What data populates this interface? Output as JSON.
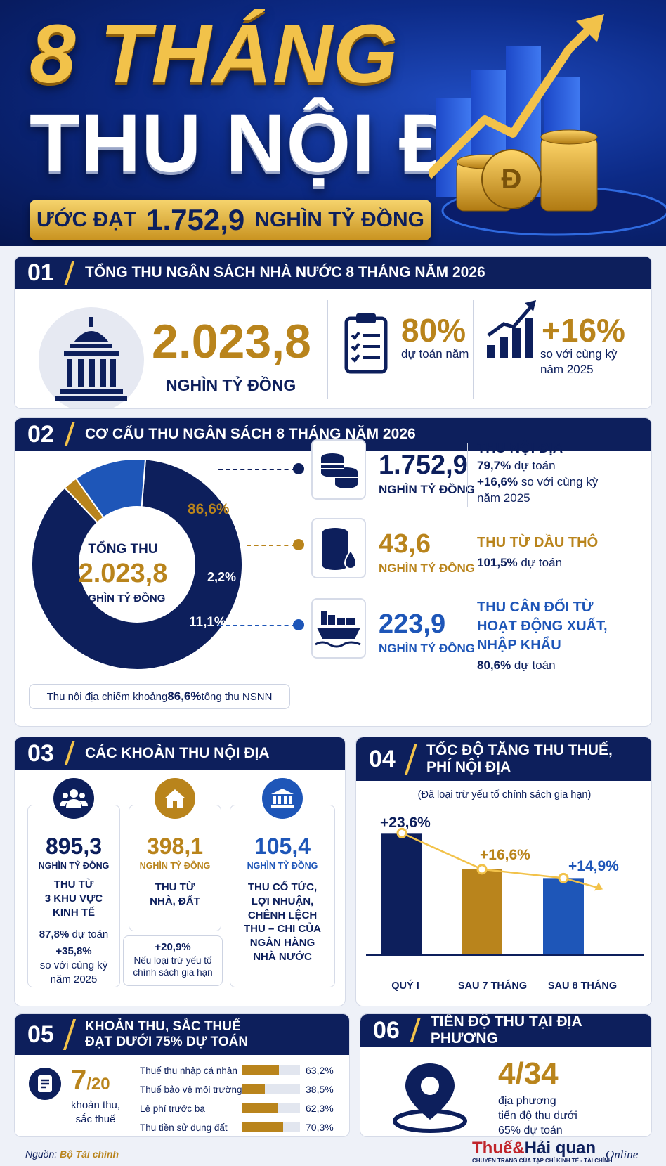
{
  "hero": {
    "title_line1": "8 THÁNG",
    "title_line2": "THU NỘI ĐỊA",
    "banner_prefix": "ƯỚC ĐẠT",
    "banner_value": "1.752,9",
    "banner_suffix": "NGHÌN TỶ ĐỒNG"
  },
  "section1": {
    "number": "01",
    "title": "TỔNG THU NGÂN SÁCH NHÀ NƯỚC 8 THÁNG NĂM 2026",
    "total_value": "2.023,8",
    "total_unit": "NGHÌN TỶ ĐỒNG",
    "estimate_pct": "80%",
    "estimate_label": "dự toán năm",
    "growth_pct": "+16%",
    "growth_label_1": "so với cùng kỳ",
    "growth_label_2": "năm 2025"
  },
  "section2": {
    "number": "02",
    "title": "CƠ CẤU THU NGÂN SÁCH 8 THÁNG NĂM 2026",
    "center_title": "TỔNG THU",
    "center_value": "2.023,8",
    "center_unit": "NGHÌN TỶ ĐỒNG",
    "items": [
      {
        "value": "1.752,9",
        "unit": "NGHÌN TỶ ĐỒNG",
        "title": "THU NỘI ĐỊA",
        "pct_strong": "79,7%",
        "pct_rest": " dự toán",
        "line3_strong": "+16,6%",
        "line3_rest": " so với cùng kỳ",
        "line4": "năm 2025"
      },
      {
        "value": "43,6",
        "unit": "NGHÌN TỶ ĐỒNG",
        "title": "THU TỪ DẦU THÔ",
        "pct_strong": "101,5%",
        "pct_rest": " dự toán"
      },
      {
        "value": "223,9",
        "unit": "NGHÌN TỶ ĐỒNG",
        "title_1": "THU CÂN ĐỐI TỪ",
        "title_2": "HOẠT ĐỘNG XUẤT,",
        "title_3": "NHẬP KHẨU",
        "pct_strong": "80,6%",
        "pct_rest": " dự toán"
      }
    ],
    "note_pre": "Thu nội địa chiếm khoảng ",
    "note_strong": "86,6%",
    "note_post": " tổng thu NSNN"
  },
  "chart_data": [
    {
      "type": "pie",
      "title": "CƠ CẤU THU NGÂN SÁCH 8 THÁNG NĂM 2026",
      "categories": [
        "THU NỘI ĐỊA",
        "THU TỪ DẦU THÔ",
        "THU CÂN ĐỐI TỪ HOẠT ĐỘNG XUẤT, NHẬP KHẨU"
      ],
      "values": [
        86.6,
        2.2,
        11.1
      ],
      "labels": [
        "86,6%",
        "2,2%",
        "11,1%"
      ],
      "colors": [
        "#0d1f5c",
        "#b9841c",
        "#1e56b8"
      ]
    },
    {
      "type": "bar",
      "title": "TỐC ĐỘ TĂNG THU THUẾ, PHÍ NỘI ĐỊA",
      "categories": [
        "QUÝ I",
        "SAU 7 THÁNG",
        "SAU 8 THÁNG"
      ],
      "values": [
        23.6,
        16.6,
        14.9
      ],
      "labels": [
        "+23,6%",
        "+16,6%",
        "+14,9%"
      ],
      "colors": [
        "#0d1f5c",
        "#b9841c",
        "#1e56b8"
      ],
      "ylim": [
        0,
        25
      ]
    },
    {
      "type": "bar",
      "title": "KHOẢN THU, SẮC THUẾ ĐẠT DƯỚI 75% DỰ TOÁN",
      "categories": [
        "Thuế thu nhập cá nhân",
        "Thuế bảo vệ môi trường",
        "Lệ phí trước bạ",
        "Thu tiền sử dụng đất"
      ],
      "values": [
        63.2,
        38.5,
        62.3,
        70.3
      ],
      "labels": [
        "63,2%",
        "38,5%",
        "62,3%",
        "70,3%"
      ],
      "ylim": [
        0,
        100
      ]
    }
  ],
  "section3": {
    "number": "03",
    "title": "CÁC KHOẢN THU NỘI ĐỊA",
    "cols": [
      {
        "value": "895,3",
        "unit": "NGHÌN TỶ ĐỒNG",
        "label_1": "THU TỪ",
        "label_2": "3 KHU VỰC",
        "label_3": "KINH TẾ",
        "stat_1_strong": "87,8%",
        "stat_1_rest": " dự toán",
        "stat_2_strong": "+35,8%",
        "stat_3": "so với cùng kỳ",
        "stat_4": "năm 2025"
      },
      {
        "value": "398,1",
        "unit": "NGHÌN TỶ ĐỒNG",
        "label_1": "THU TỪ",
        "label_2": "NHÀ, ĐẤT",
        "sub_strong": "+20,9%",
        "sub_1": "Nếu loại trừ yếu tố",
        "sub_2": "chính sách gia hạn"
      },
      {
        "value": "105,4",
        "unit": "NGHÌN TỶ ĐỒNG",
        "label_1": "THU CỔ TỨC,",
        "label_2": "LỢI NHUẬN,",
        "label_3": "CHÊNH LỆCH",
        "label_4": "THU – CHI CỦA",
        "label_5": "NGÂN HÀNG",
        "label_6": "NHÀ NƯỚC"
      }
    ]
  },
  "section4": {
    "number": "04",
    "title_1": "TỐC ĐỘ TĂNG THU THUẾ,",
    "title_2": "PHÍ NỘI ĐỊA",
    "subtitle": "(Đã loại trừ yếu tố chính sách gia hạn)"
  },
  "section5": {
    "number": "05",
    "title_1": "KHOẢN THU, SẮC THUẾ",
    "title_2": "ĐẠT DƯỚI 75% DỰ TOÁN",
    "count_main": "7",
    "count_rest": "/20",
    "count_label_1": "khoản thu,",
    "count_label_2": "sắc thuế"
  },
  "section6": {
    "number": "06",
    "title": "TIẾN ĐỘ THU TẠI ĐỊA PHƯƠNG",
    "value": "4/34",
    "label_1": "địa phương",
    "label_2": "tiến độ thu dưới",
    "label_3": "65% dự toán"
  },
  "footer": {
    "source_label": "Nguồn: ",
    "source_value": "Bộ Tài chính",
    "brand_1": "Thuế",
    "brand_amp": "&",
    "brand_2": "Hải quan",
    "brand_online": "Online",
    "brand_sub": "CHUYÊN TRANG CỦA TẠP CHÍ KINH TẾ - TÀI CHÍNH"
  },
  "colors": {
    "navy": "#0d1f5c",
    "gold": "#b9841c",
    "blue": "#1e56b8",
    "bright_gold": "#f2c24a"
  },
  "icons": [
    "capitol-icon",
    "clipboard-icon",
    "growth-chart-icon",
    "coins-icon",
    "oil-barrel-icon",
    "cargo-ship-icon",
    "people-icon",
    "house-icon",
    "bank-icon",
    "list-icon",
    "location-pin-icon"
  ]
}
